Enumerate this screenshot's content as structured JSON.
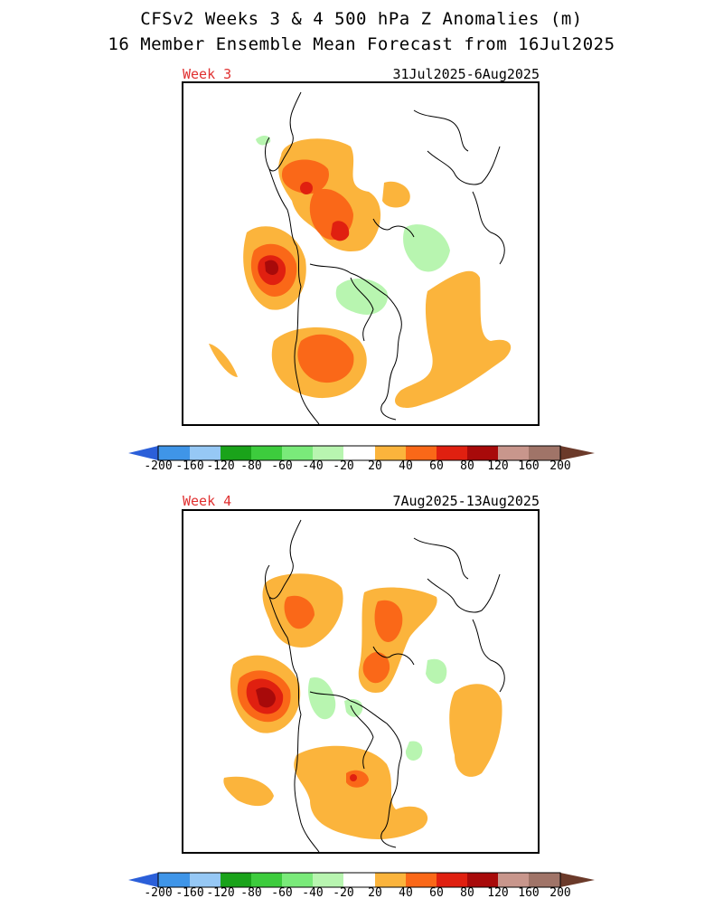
{
  "header": {
    "title_line1": "CFSv2 Weeks 3 & 4 500 hPa Z Anomalies (m)",
    "title_line2": "16 Member Ensemble Mean Forecast from 16Jul2025"
  },
  "panels": [
    {
      "label": "Week 3",
      "date_range": "31Jul2025-6Aug2025"
    },
    {
      "label": "Week 4",
      "date_range": "7Aug2025-13Aug2025"
    }
  ],
  "colorbar": {
    "labels": [
      "-200",
      "-160",
      "-120",
      "-80",
      "-60",
      "-40",
      "-20",
      "20",
      "40",
      "60",
      "80",
      "120",
      "160",
      "200"
    ],
    "colors": [
      "#2b5fd9",
      "#3f95e8",
      "#96c8f5",
      "#1aa31a",
      "#3dcc3d",
      "#7aea7a",
      "#b8f5b0",
      "#ffffff",
      "#fbb43c",
      "#fa6818",
      "#e02010",
      "#a80a0a",
      "#c8968c",
      "#a07468",
      "#6b3a2a"
    ]
  },
  "legend_colors": {
    "contour_pos_1": "#fbb43c",
    "contour_pos_2": "#fa6818",
    "contour_pos_3": "#e02010",
    "contour_pos_4": "#a80a0a",
    "contour_neg_1": "#b8f5b0",
    "contour_neg_2": "#7aea7a",
    "coast": "#000000",
    "week_label": "#e03030"
  }
}
